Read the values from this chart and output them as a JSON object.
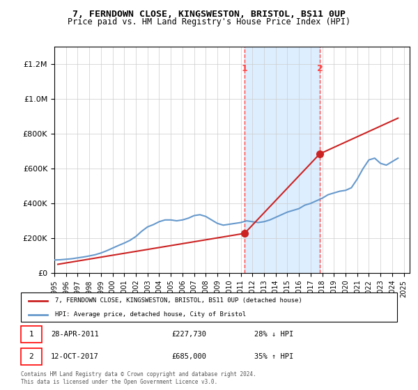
{
  "title": "7, FERNDOWN CLOSE, KINGSWESTON, BRISTOL, BS11 0UP",
  "subtitle": "Price paid vs. HM Land Registry's House Price Index (HPI)",
  "hpi_label": "HPI: Average price, detached house, City of Bristol",
  "property_label": "7, FERNDOWN CLOSE, KINGSWESTON, BRISTOL, BS11 0UP (detached house)",
  "footer": "Contains HM Land Registry data © Crown copyright and database right 2024.\nThis data is licensed under the Open Government Licence v3.0.",
  "transaction1_date": "28-APR-2011",
  "transaction1_price": "£227,730",
  "transaction1_hpi": "28% ↓ HPI",
  "transaction2_date": "12-OCT-2017",
  "transaction2_price": "£685,000",
  "transaction2_hpi": "35% ↑ HPI",
  "hpi_color": "#6699cc",
  "property_color": "#cc2222",
  "marker1_color": "#cc2222",
  "marker2_color": "#cc2222",
  "vline_color": "#ff4444",
  "shading_color": "#ddeeff",
  "background_color": "#ffffff",
  "ylim": [
    0,
    1300000
  ],
  "yticks": [
    0,
    200000,
    400000,
    600000,
    800000,
    1000000,
    1200000
  ],
  "xlim_start": 1995.0,
  "xlim_end": 2025.5,
  "transaction1_x": 2011.33,
  "transaction1_y": 227730,
  "transaction2_x": 2017.79,
  "transaction2_y": 685000,
  "hpi_years": [
    1995.0,
    1995.5,
    1996.0,
    1996.5,
    1997.0,
    1997.5,
    1998.0,
    1998.5,
    1999.0,
    1999.5,
    2000.0,
    2000.5,
    2001.0,
    2001.5,
    2002.0,
    2002.5,
    2003.0,
    2003.5,
    2004.0,
    2004.5,
    2005.0,
    2005.5,
    2006.0,
    2006.5,
    2007.0,
    2007.5,
    2008.0,
    2008.5,
    2009.0,
    2009.5,
    2010.0,
    2010.5,
    2011.0,
    2011.5,
    2012.0,
    2012.5,
    2013.0,
    2013.5,
    2014.0,
    2014.5,
    2015.0,
    2015.5,
    2016.0,
    2016.5,
    2017.0,
    2017.5,
    2018.0,
    2018.5,
    2019.0,
    2019.5,
    2020.0,
    2020.5,
    2021.0,
    2021.5,
    2022.0,
    2022.5,
    2023.0,
    2023.5,
    2024.0,
    2024.5
  ],
  "hpi_values": [
    75000,
    76000,
    79000,
    82000,
    87000,
    92000,
    98000,
    105000,
    115000,
    128000,
    143000,
    158000,
    172000,
    188000,
    210000,
    240000,
    265000,
    278000,
    295000,
    305000,
    305000,
    300000,
    305000,
    315000,
    330000,
    335000,
    325000,
    305000,
    285000,
    275000,
    280000,
    285000,
    290000,
    300000,
    295000,
    290000,
    295000,
    305000,
    320000,
    335000,
    350000,
    360000,
    370000,
    390000,
    400000,
    415000,
    430000,
    450000,
    460000,
    470000,
    475000,
    490000,
    540000,
    600000,
    650000,
    660000,
    630000,
    620000,
    640000,
    660000
  ],
  "property_years": [
    1995.3,
    2011.33,
    2017.79,
    2024.5
  ],
  "property_values": [
    50000,
    227730,
    685000,
    890000
  ],
  "xtick_years": [
    1995,
    1996,
    1997,
    1998,
    1999,
    2000,
    2001,
    2002,
    2003,
    2004,
    2005,
    2006,
    2007,
    2008,
    2009,
    2010,
    2011,
    2012,
    2013,
    2014,
    2015,
    2016,
    2017,
    2018,
    2019,
    2020,
    2021,
    2022,
    2023,
    2024,
    2025
  ]
}
